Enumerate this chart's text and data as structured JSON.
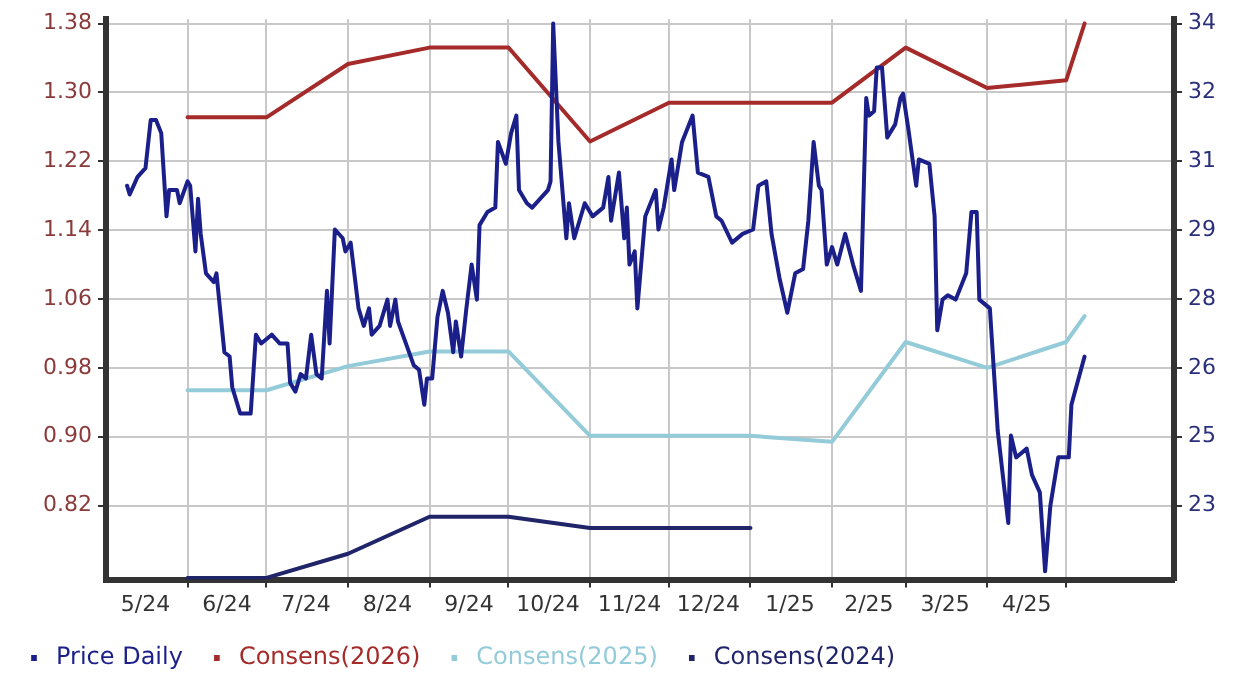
{
  "chart_data": {
    "type": "line",
    "marker": "none",
    "grid": true,
    "legend": "bottom",
    "xlim": [
      "2024-05-01",
      "2025-06-11"
    ],
    "xticks": [
      {
        "value": "2024-05-16",
        "label": "5/24"
      },
      {
        "value": "2024-06-01",
        "label": null
      },
      {
        "value": "2024-06-16",
        "label": "6/24"
      },
      {
        "value": "2024-07-01",
        "label": null
      },
      {
        "value": "2024-07-16",
        "label": "7/24"
      },
      {
        "value": "2024-08-01",
        "label": null
      },
      {
        "value": "2024-08-16",
        "label": "8/24"
      },
      {
        "value": "2024-09-01",
        "label": null
      },
      {
        "value": "2024-09-16",
        "label": "9/24"
      },
      {
        "value": "2024-10-01",
        "label": null
      },
      {
        "value": "2024-10-16",
        "label": "10/24"
      },
      {
        "value": "2024-11-01",
        "label": null
      },
      {
        "value": "2024-11-16",
        "label": "11/24"
      },
      {
        "value": "2024-12-01",
        "label": null
      },
      {
        "value": "2024-12-16",
        "label": "12/24"
      },
      {
        "value": "2025-01-01",
        "label": null
      },
      {
        "value": "2025-01-16",
        "label": "1/25"
      },
      {
        "value": "2025-02-01",
        "label": null
      },
      {
        "value": "2025-02-15",
        "label": "2/25"
      },
      {
        "value": "2025-03-01",
        "label": null
      },
      {
        "value": "2025-03-16",
        "label": "3/25"
      },
      {
        "value": "2025-04-01",
        "label": null
      },
      {
        "value": "2025-04-16",
        "label": "4/25"
      },
      {
        "value": "2025-05-01",
        "label": null
      }
    ],
    "ylim": [
      0.734,
      1.385
    ],
    "yticks": [
      0.82,
      {
        "value": 0.9,
        "label": "0.90"
      },
      0.98,
      1.06,
      1.14,
      1.22,
      {
        "value": 1.3,
        "label": "1.30"
      },
      1.38
    ],
    "y2lim": [
      21.31,
      34.1
    ],
    "y2ticks": [
      23,
      {
        "value": 24.57,
        "label": "25"
      },
      {
        "value": 26.14,
        "label": "26"
      },
      {
        "value": 27.71,
        "label": "28"
      },
      {
        "value": 29.29,
        "label": "29"
      },
      {
        "value": 30.86,
        "label": "31"
      },
      {
        "value": 32.43,
        "label": "32"
      },
      34
    ],
    "series": [
      {
        "name": "Price Daily",
        "color": "#1b1f8a",
        "axis": "y2",
        "x": [
          "2024-05-09",
          "2024-05-10",
          "2024-05-13",
          "2024-05-16",
          "2024-05-18",
          "2024-05-20",
          "2024-05-22",
          "2024-05-24",
          "2024-05-25",
          "2024-05-28",
          "2024-05-29",
          "2024-06-01",
          "2024-06-02",
          "2024-06-04",
          "2024-06-05",
          "2024-06-06",
          "2024-06-08",
          "2024-06-11",
          "2024-06-12",
          "2024-06-15",
          "2024-06-17",
          "2024-06-18",
          "2024-06-21",
          "2024-06-25",
          "2024-06-27",
          "2024-06-29",
          "2024-07-03",
          "2024-07-06",
          "2024-07-09",
          "2024-07-10",
          "2024-07-12",
          "2024-07-14",
          "2024-07-16",
          "2024-07-18",
          "2024-07-20",
          "2024-07-22",
          "2024-07-24",
          "2024-07-25",
          "2024-07-27",
          "2024-07-30",
          "2024-07-31",
          "2024-08-02",
          "2024-08-05",
          "2024-08-07",
          "2024-08-09",
          "2024-08-10",
          "2024-08-13",
          "2024-08-16",
          "2024-08-17",
          "2024-08-19",
          "2024-08-20",
          "2024-08-23",
          "2024-08-26",
          "2024-08-28",
          "2024-08-30",
          "2024-08-31",
          "2024-09-02",
          "2024-09-04",
          "2024-09-06",
          "2024-09-08",
          "2024-09-10",
          "2024-09-11",
          "2024-09-13",
          "2024-09-15",
          "2024-09-17",
          "2024-09-19",
          "2024-09-20",
          "2024-09-23",
          "2024-09-26",
          "2024-09-27",
          "2024-09-30",
          "2024-10-02",
          "2024-10-04",
          "2024-10-05",
          "2024-10-08",
          "2024-10-10",
          "2024-10-13",
          "2024-10-16",
          "2024-10-17",
          "2024-10-18",
          "2024-10-20",
          "2024-10-23",
          "2024-10-24",
          "2024-10-26",
          "2024-10-30",
          "2024-11-02",
          "2024-11-06",
          "2024-11-08",
          "2024-11-09",
          "2024-11-12",
          "2024-11-14",
          "2024-11-15",
          "2024-11-16",
          "2024-11-18",
          "2024-11-19",
          "2024-11-22",
          "2024-11-26",
          "2024-11-27",
          "2024-11-29",
          "2024-12-02",
          "2024-12-03",
          "2024-12-06",
          "2024-12-10",
          "2024-12-12",
          "2024-12-16",
          "2024-12-19",
          "2024-12-21",
          "2024-12-25",
          "2024-12-29",
          "2025-01-02",
          "2025-01-04",
          "2025-01-07",
          "2025-01-09",
          "2025-01-12",
          "2025-01-15",
          "2025-01-18",
          "2025-01-21",
          "2025-01-23",
          "2025-01-25",
          "2025-01-27",
          "2025-01-28",
          "2025-01-30",
          "2025-02-01",
          "2025-02-03",
          "2025-02-06",
          "2025-02-09",
          "2025-02-12",
          "2025-02-14",
          "2025-02-15",
          "2025-02-17",
          "2025-02-18",
          "2025-02-20",
          "2025-02-22",
          "2025-02-25",
          "2025-02-27",
          "2025-02-28",
          "2025-03-02",
          "2025-03-05",
          "2025-03-06",
          "2025-03-10",
          "2025-03-12",
          "2025-03-13",
          "2025-03-15",
          "2025-03-17",
          "2025-03-20",
          "2025-03-24",
          "2025-03-26",
          "2025-03-28",
          "2025-03-29",
          "2025-04-02",
          "2025-04-05",
          "2025-04-09",
          "2025-04-10",
          "2025-04-12",
          "2025-04-16",
          "2025-04-18",
          "2025-04-21",
          "2025-04-23",
          "2025-04-25",
          "2025-04-28",
          "2025-05-02",
          "2025-05-03",
          "2025-05-08"
        ],
        "values": [
          30.3,
          30.1,
          30.5,
          30.7,
          31.8,
          31.8,
          31.5,
          29.6,
          30.2,
          30.2,
          29.9,
          30.4,
          30.3,
          28.8,
          30.0,
          29.2,
          28.3,
          28.1,
          28.3,
          26.5,
          26.4,
          25.7,
          25.1,
          25.1,
          26.9,
          26.7,
          26.9,
          26.7,
          26.7,
          25.8,
          25.6,
          26.0,
          25.9,
          26.9,
          26.0,
          25.9,
          27.9,
          26.7,
          29.3,
          29.1,
          28.8,
          29.0,
          27.5,
          27.1,
          27.5,
          26.9,
          27.1,
          27.7,
          27.1,
          27.7,
          27.2,
          26.7,
          26.2,
          26.1,
          25.3,
          25.9,
          25.9,
          27.3,
          27.9,
          27.4,
          26.5,
          27.2,
          26.4,
          27.5,
          28.5,
          27.7,
          29.4,
          29.7,
          29.8,
          31.3,
          30.8,
          31.5,
          31.9,
          30.2,
          29.9,
          29.8,
          30.0,
          30.2,
          30.4,
          34.0,
          31.3,
          29.1,
          29.9,
          29.1,
          29.9,
          29.6,
          29.8,
          30.5,
          29.5,
          30.6,
          29.1,
          29.8,
          28.5,
          28.8,
          27.5,
          29.6,
          30.2,
          29.3,
          29.8,
          30.9,
          30.2,
          31.3,
          31.9,
          30.6,
          30.5,
          29.6,
          29.5,
          29.0,
          29.2,
          29.3,
          30.3,
          30.4,
          29.2,
          28.2,
          27.4,
          28.3,
          28.4,
          29.5,
          31.3,
          30.3,
          30.2,
          28.5,
          28.9,
          28.5,
          29.2,
          28.5,
          27.9,
          32.3,
          31.9,
          32.0,
          33.0,
          33.0,
          31.4,
          31.7,
          32.3,
          32.4,
          31.6,
          30.3,
          30.9,
          30.8,
          29.6,
          27.0,
          27.7,
          27.8,
          27.7,
          28.3,
          29.7,
          29.7,
          27.7,
          27.5,
          24.7,
          22.6,
          24.6,
          24.1,
          24.3,
          23.7,
          23.3,
          21.5,
          23.0,
          24.1,
          24.1,
          25.3,
          26.4
        ]
      },
      {
        "name": "Consens(2026)",
        "color": "#a52a2a",
        "x": [
          "2024-06-01",
          "2024-07-01",
          "2024-08-01",
          "2024-09-01",
          "2024-10-01",
          "2024-11-01",
          "2024-12-01",
          "2025-01-01",
          "2025-02-01",
          "2025-03-01",
          "2025-04-01",
          "2025-05-01",
          "2025-05-08"
        ],
        "values": [
          1.271,
          1.271,
          1.333,
          1.352,
          1.352,
          1.243,
          1.288,
          1.288,
          1.288,
          1.352,
          1.305,
          1.314,
          1.38
        ]
      },
      {
        "name": "Consens(2025)",
        "color": "#93cbd9",
        "x": [
          "2024-06-01",
          "2024-07-01",
          "2024-08-01",
          "2024-09-01",
          "2024-10-01",
          "2024-11-01",
          "2024-12-01",
          "2025-01-01",
          "2025-02-01",
          "2025-03-01",
          "2025-04-01",
          "2025-05-01",
          "2025-05-08"
        ],
        "values": [
          0.954,
          0.954,
          0.982,
          0.999,
          0.999,
          0.901,
          0.901,
          0.901,
          0.894,
          1.01,
          0.98,
          1.01,
          1.04
        ]
      },
      {
        "name": "Consens(2024)",
        "color": "#202468",
        "x": [
          "2024-06-01",
          "2024-07-01",
          "2024-08-01",
          "2024-09-01",
          "2024-10-01",
          "2024-11-01",
          "2024-12-01",
          "2025-01-01"
        ],
        "values": [
          0.736,
          0.736,
          0.764,
          0.807,
          0.807,
          0.794,
          0.794,
          0.794
        ]
      }
    ]
  }
}
